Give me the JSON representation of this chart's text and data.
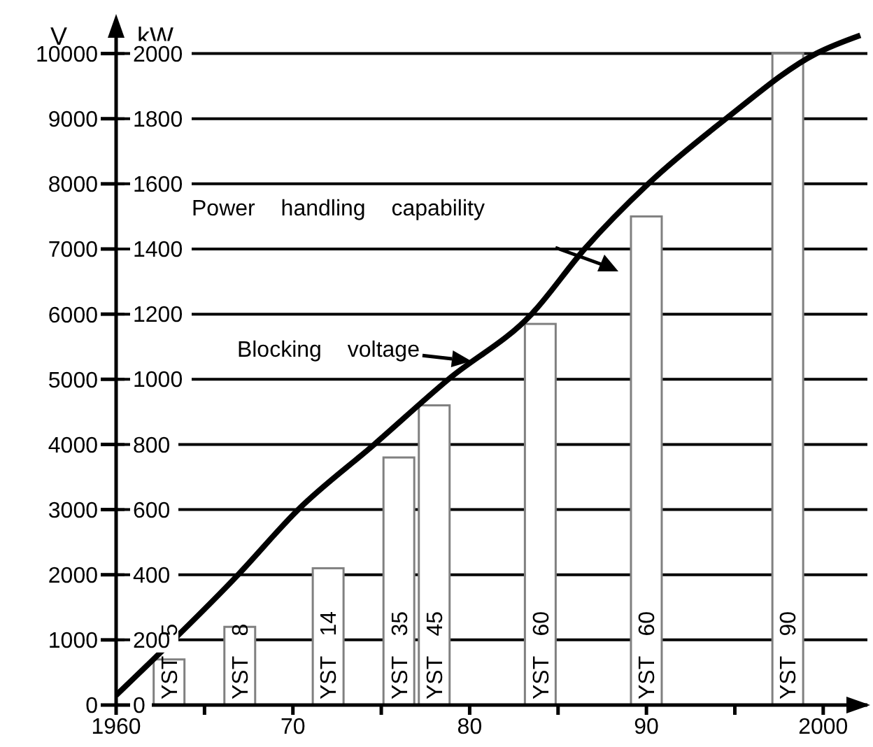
{
  "chart_data": {
    "type": "bar",
    "ylabel": "V",
    "y2label": "kW",
    "xlim": [
      1960,
      2002.5
    ],
    "xticks": [
      1960,
      {
        "value": 1965,
        "label": null
      },
      {
        "value": 1970,
        "label": "70"
      },
      {
        "value": 1975,
        "label": null
      },
      {
        "value": 1980,
        "label": "80"
      },
      {
        "value": 1985,
        "label": null
      },
      {
        "value": 1990,
        "label": "90"
      },
      {
        "value": 1995,
        "label": null
      },
      {
        "value": 2000,
        "label": "2000"
      }
    ],
    "ylim": [
      0,
      10500
    ],
    "yticks": [
      0,
      1000,
      2000,
      3000,
      4000,
      5000,
      6000,
      7000,
      8000,
      9000,
      10000
    ],
    "y2lim": [
      0,
      2100
    ],
    "y2ticks": [
      0,
      200,
      400,
      600,
      800,
      1000,
      1200,
      1400,
      1600,
      1800,
      2000
    ],
    "grid": "y",
    "legend": false,
    "series": [
      {
        "axis": "y2",
        "color": "#ffffff",
        "x": [
          1963,
          1967,
          1972,
          1976,
          1978,
          1984,
          1990,
          1998
        ],
        "values": [
          140,
          240,
          420,
          760,
          920,
          1170,
          1500,
          2000
        ]
      },
      {
        "type": "line",
        "axis": "y",
        "color": "#000000",
        "marker": "none",
        "line_style": "solid",
        "x": [
          1960,
          1966.9,
          1970.3,
          1974.6,
          1978.8,
          1983.5,
          1986.5,
          1990.1,
          1994.5,
          1999.6,
          2002.1
        ],
        "values": [
          150,
          2000,
          3000,
          4000,
          5000,
          6000,
          7000,
          8000,
          9000,
          10000,
          10280
        ]
      }
    ],
    "annotations": [
      "Power handling capability",
      {
        "text": "Blocking voltage",
        "x": 1980.1,
        "y": 5280
      },
      {
        "text": "YST 5",
        "x": 1963,
        "y": 0
      },
      {
        "text": "YST 8",
        "x": 1967,
        "y": 0
      },
      {
        "text": "YST 14",
        "x": 1972,
        "y": 0
      },
      {
        "text": "YST 35",
        "x": 1976,
        "y": 0
      },
      {
        "text": "YST 45",
        "x": 1978,
        "y": 0
      },
      {
        "text": "YST 60",
        "x": 1984,
        "y": 0
      },
      {
        "text": "YST 60",
        "x": 1990,
        "y": 0
      },
      {
        "text": "YST 90",
        "x": 1998,
        "y": 0
      }
    ]
  }
}
